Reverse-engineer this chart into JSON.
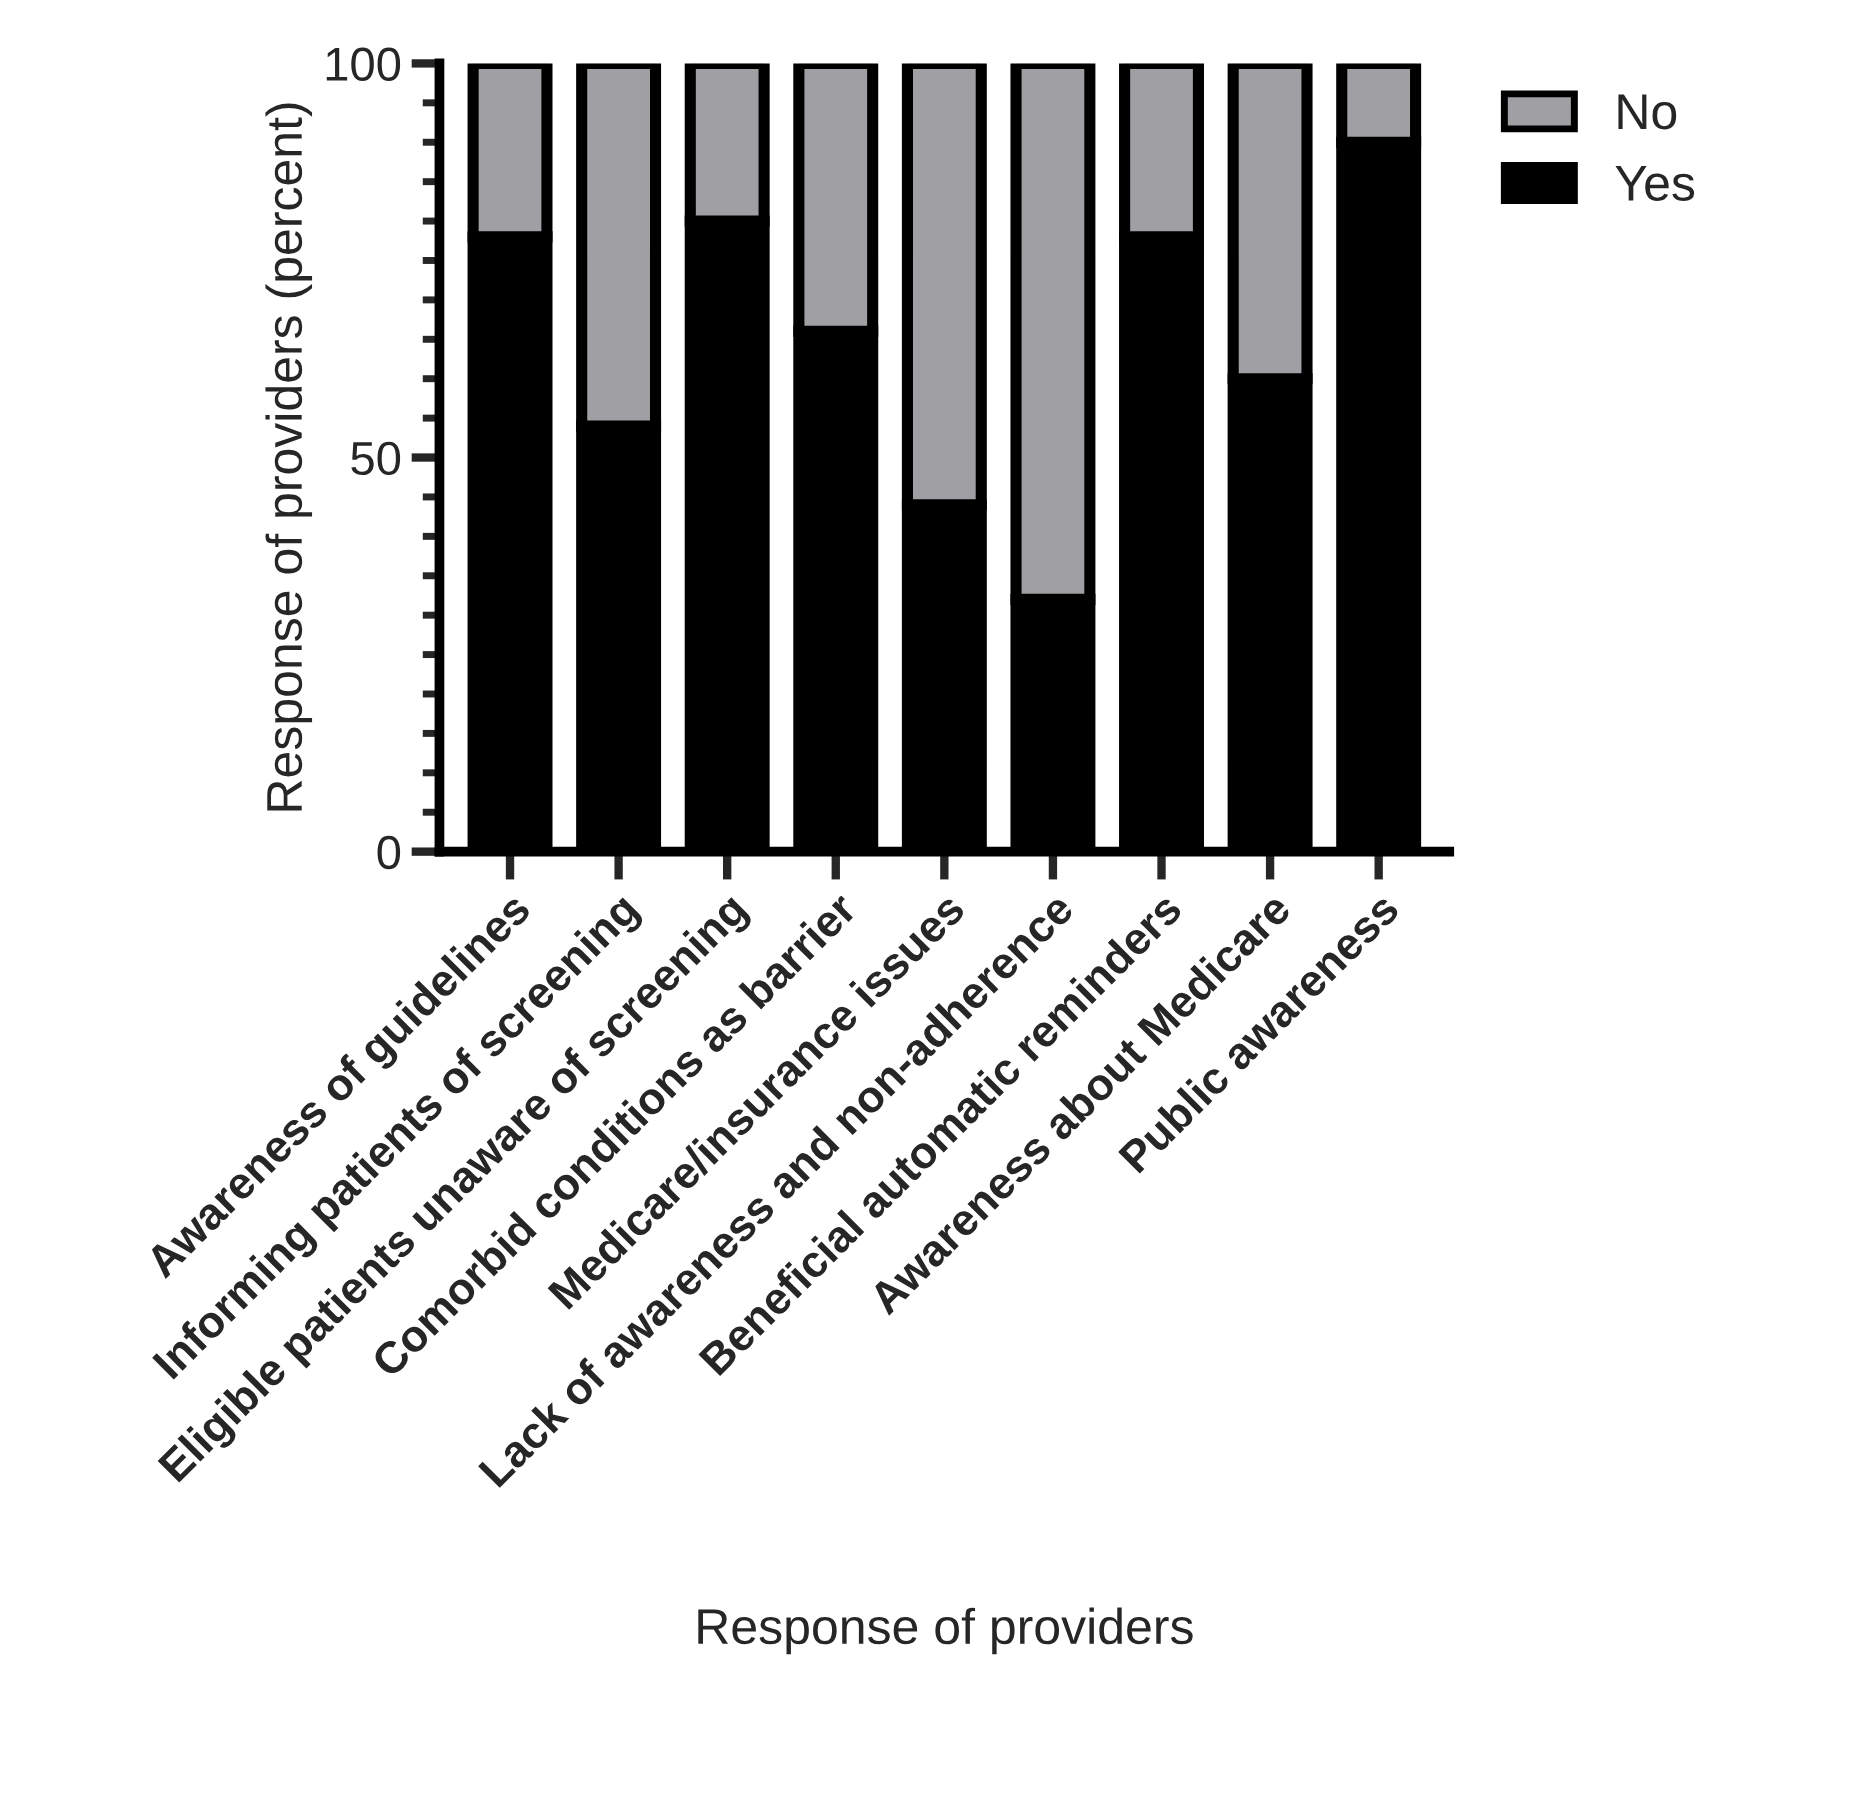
{
  "chart_data": {
    "type": "bar",
    "stacked": true,
    "xlabel": "Response of providers",
    "ylabel": "Response of providers (percent)",
    "categories": [
      "Awareness of guidelines",
      "Informing patients of screening",
      "Eligible patients unaware of screening",
      "Comorbid conditions as barrier",
      "Medicare/insurance issues",
      "Lack of awareness and non-adherence",
      "Beneficial automatic reminders",
      "Awareness about Medicare",
      "Public awareness"
    ],
    "series": [
      {
        "name": "Yes",
        "color": "#000000",
        "values": [
          78,
          54,
          80,
          66,
          44,
          32,
          78,
          60,
          90
        ]
      },
      {
        "name": "No",
        "color": "#a0a0a4",
        "values": [
          22,
          46,
          20,
          34,
          56,
          68,
          22,
          40,
          10
        ]
      }
    ],
    "ylim": [
      0,
      100
    ],
    "yticks": [
      0,
      50,
      100
    ],
    "grid": false,
    "legend": "top right"
  }
}
